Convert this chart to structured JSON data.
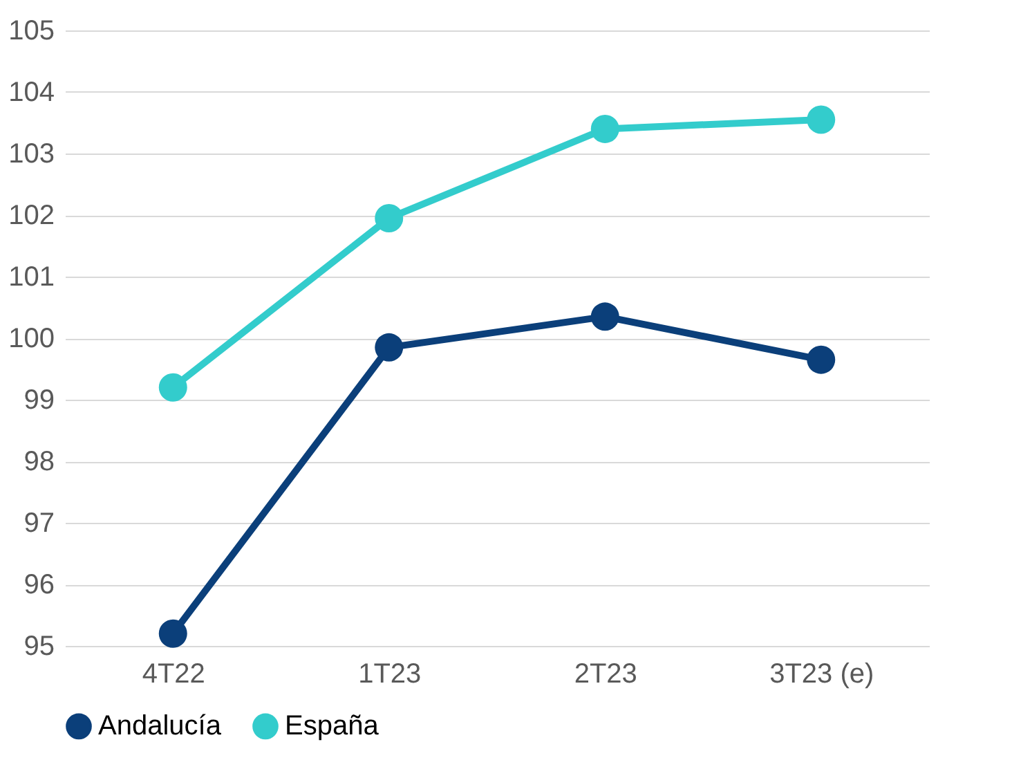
{
  "chart_data": {
    "type": "line",
    "categories": [
      "4T22",
      "1T23",
      "2T23",
      "3T23 (e)"
    ],
    "series": [
      {
        "name": "Andalucía",
        "color": "#0b3f7a",
        "values": [
          95.2,
          99.85,
          100.35,
          99.65
        ]
      },
      {
        "name": "España",
        "color": "#33cccc",
        "values": [
          99.2,
          101.95,
          103.4,
          103.55
        ]
      }
    ],
    "ylim": [
      95,
      105
    ],
    "yticks": [
      95,
      96,
      97,
      98,
      99,
      100,
      101,
      102,
      103,
      104,
      105
    ],
    "grid": "y",
    "legend": "bottom left",
    "marker": "circle",
    "line_style": "solid"
  }
}
